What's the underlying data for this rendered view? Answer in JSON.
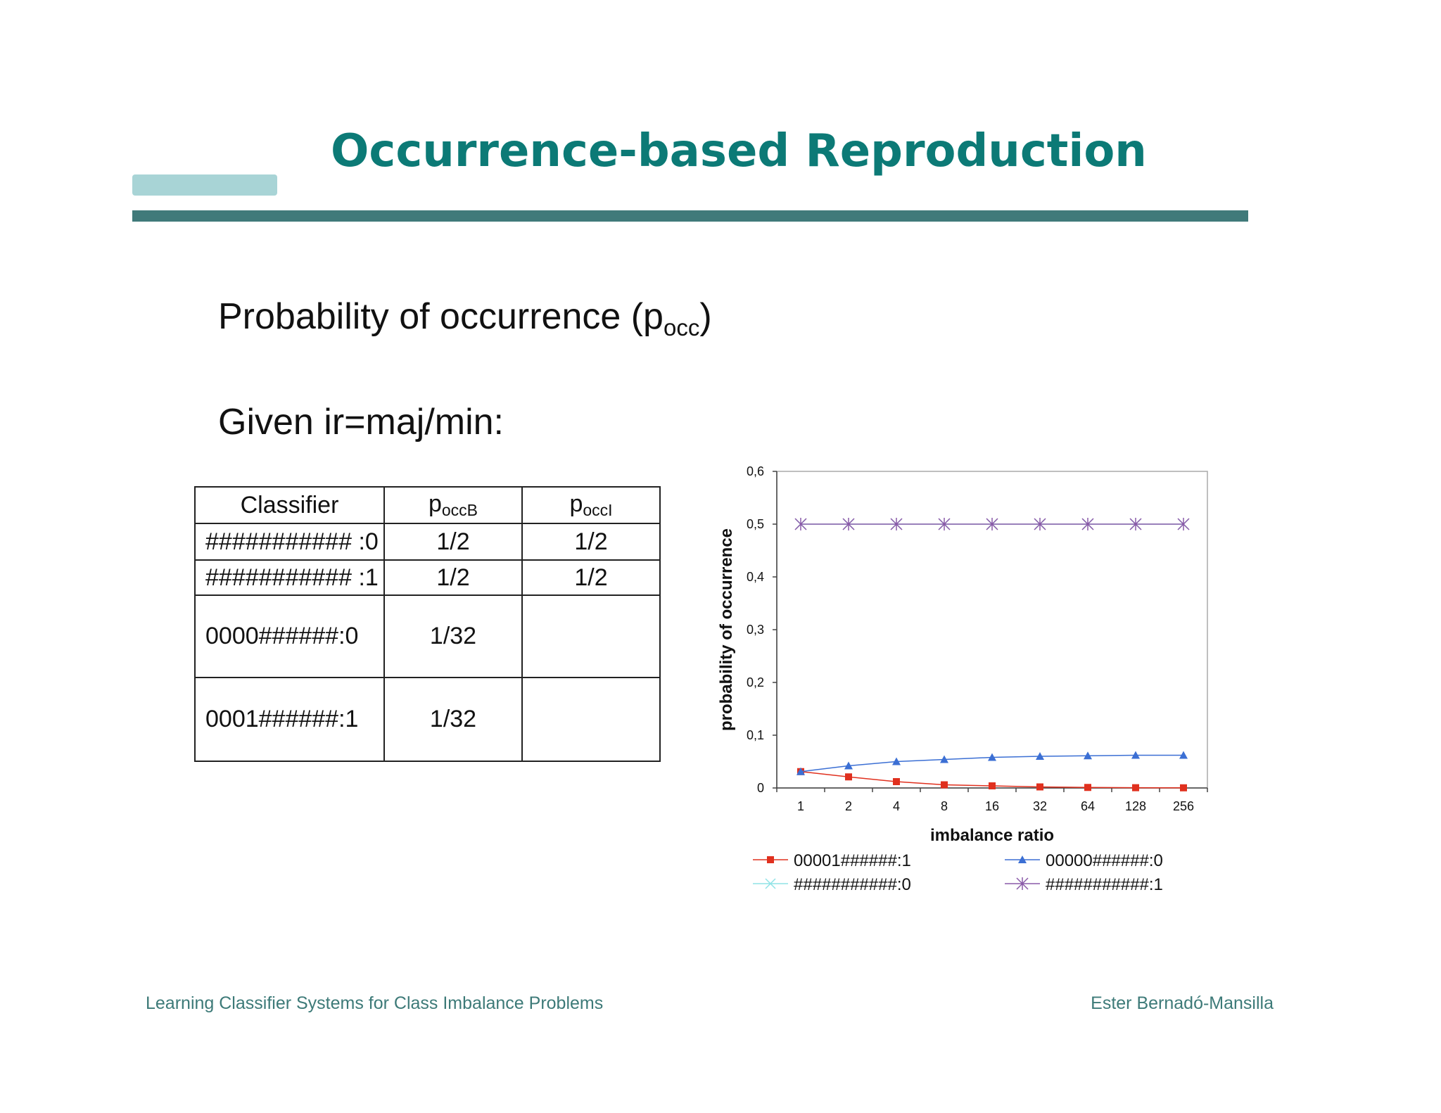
{
  "slide": {
    "title": "Occurrence-based Reproduction",
    "line1_text": "Probability of occurrence (p",
    "line1_sub": "occ",
    "line1_close": ")",
    "line2": "Given ir=maj/min:"
  },
  "table": {
    "headers": [
      {
        "text": "Classifier",
        "sub": ""
      },
      {
        "text": "p",
        "sub": "occB"
      },
      {
        "text": "p",
        "sub": "occI"
      }
    ],
    "rows": [
      [
        "########### :0",
        "1/2",
        "1/2"
      ],
      [
        "########### :1",
        "1/2",
        "1/2"
      ],
      [
        "0000######:0",
        "1/32",
        ""
      ],
      [
        "0001######:1",
        "1/32",
        ""
      ]
    ]
  },
  "chart_data": {
    "type": "line",
    "title": "",
    "xlabel": "imbalance ratio",
    "ylabel": "probability of occurrence",
    "categories": [
      "1",
      "2",
      "4",
      "8",
      "16",
      "32",
      "64",
      "128",
      "256"
    ],
    "ylim": [
      0,
      0.6
    ],
    "yticks": [
      "0",
      "0,1",
      "0,2",
      "0,3",
      "0,4",
      "0,5",
      "0,6"
    ],
    "legend_position": "bottom",
    "series": [
      {
        "name": "00001######:1",
        "color": "#e0301e",
        "marker": "square",
        "values": [
          0.031,
          0.021,
          0.012,
          0.006,
          0.004,
          0.002,
          0.001,
          0.0005,
          0.0003
        ]
      },
      {
        "name": "00000######:0",
        "color": "#3b6fd4",
        "marker": "triangle",
        "values": [
          0.031,
          0.042,
          0.05,
          0.054,
          0.058,
          0.06,
          0.061,
          0.062,
          0.062
        ]
      },
      {
        "name": "###########:0",
        "color": "#8fe3e6",
        "marker": "x",
        "values": [
          0.5,
          0.5,
          0.5,
          0.5,
          0.5,
          0.5,
          0.5,
          0.5,
          0.5
        ]
      },
      {
        "name": "###########:1",
        "color": "#8a5aa8",
        "marker": "asterisk",
        "values": [
          0.5,
          0.5,
          0.5,
          0.5,
          0.5,
          0.5,
          0.5,
          0.5,
          0.5
        ]
      }
    ]
  },
  "footer": {
    "left": "Learning Classifier Systems for Class Imbalance Problems",
    "right": "Ester Bernadó-Mansilla"
  }
}
